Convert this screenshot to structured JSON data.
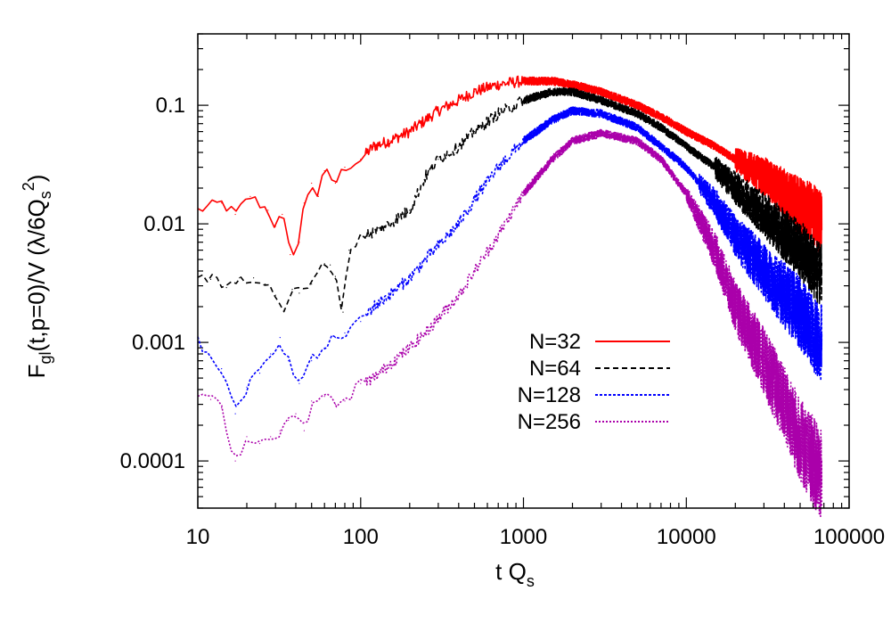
{
  "chart_data": {
    "type": "line",
    "title": "",
    "xlabel": "t Q",
    "xlabel_sub": "s",
    "ylabel_parts": {
      "main": "F",
      "sub": "gl",
      "mid": "(t,p=0)/V (λ/6Q",
      "sub2": "s",
      "sup2": "2",
      "end": ")"
    },
    "x_scale": "log",
    "y_scale": "log",
    "xlim": [
      10,
      100000
    ],
    "ylim": [
      4e-05,
      0.4
    ],
    "x_ticks": [
      {
        "value": 10,
        "label": "10"
      },
      {
        "value": 100,
        "label": "100"
      },
      {
        "value": 1000,
        "label": "1000"
      },
      {
        "value": 10000,
        "label": "10000"
      },
      {
        "value": 100000,
        "label": "100000"
      }
    ],
    "y_ticks": [
      {
        "value": 0.0001,
        "label": "0.0001"
      },
      {
        "value": 0.001,
        "label": "0.001"
      },
      {
        "value": 0.01,
        "label": "0.01"
      },
      {
        "value": 0.1,
        "label": "0.1"
      }
    ],
    "legend_position": "center-right",
    "series": [
      {
        "name": "N=32",
        "color": "#ff0000",
        "dash": "solid",
        "points": [
          [
            10,
            0.013
          ],
          [
            14,
            0.015
          ],
          [
            17,
            0.012
          ],
          [
            21,
            0.017
          ],
          [
            27,
            0.013
          ],
          [
            30,
            0.0095
          ],
          [
            33,
            0.012
          ],
          [
            37,
            0.0055
          ],
          [
            42,
            0.007
          ],
          [
            45,
            0.015
          ],
          [
            50,
            0.022
          ],
          [
            55,
            0.017
          ],
          [
            60,
            0.028
          ],
          [
            70,
            0.022
          ],
          [
            80,
            0.03
          ],
          [
            100,
            0.035
          ],
          [
            120,
            0.045
          ],
          [
            150,
            0.05
          ],
          [
            200,
            0.06
          ],
          [
            250,
            0.075
          ],
          [
            300,
            0.09
          ],
          [
            400,
            0.11
          ],
          [
            500,
            0.13
          ],
          [
            700,
            0.15
          ],
          [
            1000,
            0.16
          ],
          [
            1500,
            0.16
          ],
          [
            2000,
            0.15
          ],
          [
            3000,
            0.13
          ],
          [
            5000,
            0.1
          ],
          [
            7000,
            0.08
          ],
          [
            10000,
            0.06
          ],
          [
            15000,
            0.045
          ],
          [
            20000,
            0.035
          ],
          [
            30000,
            0.025
          ],
          [
            40000,
            0.018
          ],
          [
            50000,
            0.014
          ],
          [
            60000,
            0.012
          ],
          [
            68000,
            0.01
          ]
        ],
        "band": [
          [
            20000,
            1.25
          ],
          [
            68000,
            1.9
          ]
        ]
      },
      {
        "name": "N=64",
        "color": "#000000",
        "dash": "6,4",
        "points": [
          [
            10,
            0.0038
          ],
          [
            12,
            0.0034
          ],
          [
            15,
            0.0029
          ],
          [
            18,
            0.0035
          ],
          [
            22,
            0.0035
          ],
          [
            26,
            0.0031
          ],
          [
            30,
            0.0025
          ],
          [
            34,
            0.0019
          ],
          [
            38,
            0.0028
          ],
          [
            42,
            0.0026
          ],
          [
            50,
            0.0031
          ],
          [
            60,
            0.0046
          ],
          [
            65,
            0.0045
          ],
          [
            70,
            0.0036
          ],
          [
            78,
            0.0018
          ],
          [
            85,
            0.006
          ],
          [
            100,
            0.008
          ],
          [
            120,
            0.0085
          ],
          [
            150,
            0.01
          ],
          [
            200,
            0.013
          ],
          [
            250,
            0.025
          ],
          [
            300,
            0.035
          ],
          [
            400,
            0.045
          ],
          [
            500,
            0.06
          ],
          [
            700,
            0.085
          ],
          [
            1000,
            0.11
          ],
          [
            1500,
            0.13
          ],
          [
            2000,
            0.13
          ],
          [
            3000,
            0.11
          ],
          [
            5000,
            0.085
          ],
          [
            7000,
            0.065
          ],
          [
            10000,
            0.045
          ],
          [
            15000,
            0.03
          ],
          [
            20000,
            0.02
          ],
          [
            30000,
            0.012
          ],
          [
            40000,
            0.008
          ],
          [
            50000,
            0.006
          ],
          [
            60000,
            0.0045
          ],
          [
            68000,
            0.0035
          ]
        ],
        "band": [
          [
            15000,
            1.25
          ],
          [
            68000,
            1.9
          ]
        ]
      },
      {
        "name": "N=128",
        "color": "#0000ff",
        "dash": "3,2",
        "points": [
          [
            10,
            0.001
          ],
          [
            12,
            0.00075
          ],
          [
            14,
            0.0006
          ],
          [
            17,
            0.00025
          ],
          [
            20,
            0.00042
          ],
          [
            24,
            0.00055
          ],
          [
            28,
            0.0008
          ],
          [
            32,
            0.0011
          ],
          [
            36,
            0.0007
          ],
          [
            42,
            0.00045
          ],
          [
            50,
            0.0007
          ],
          [
            60,
            0.0009
          ],
          [
            70,
            0.0011
          ],
          [
            80,
            0.0012
          ],
          [
            100,
            0.0015
          ],
          [
            120,
            0.002
          ],
          [
            150,
            0.0025
          ],
          [
            200,
            0.0035
          ],
          [
            250,
            0.005
          ],
          [
            300,
            0.0065
          ],
          [
            400,
            0.01
          ],
          [
            500,
            0.016
          ],
          [
            700,
            0.03
          ],
          [
            1000,
            0.05
          ],
          [
            1500,
            0.075
          ],
          [
            2000,
            0.09
          ],
          [
            3000,
            0.085
          ],
          [
            5000,
            0.065
          ],
          [
            7000,
            0.045
          ],
          [
            10000,
            0.03
          ],
          [
            15000,
            0.015
          ],
          [
            20000,
            0.008
          ],
          [
            30000,
            0.004
          ],
          [
            40000,
            0.0025
          ],
          [
            50000,
            0.0018
          ],
          [
            60000,
            0.0012
          ],
          [
            68000,
            0.001
          ]
        ],
        "band": [
          [
            12000,
            1.2
          ],
          [
            68000,
            2.2
          ]
        ]
      },
      {
        "name": "N=256",
        "color": "#aa00aa",
        "dash": "2,2",
        "points": [
          [
            10,
            0.00037
          ],
          [
            12,
            0.00033
          ],
          [
            14,
            0.00028
          ],
          [
            17,
            0.0001
          ],
          [
            20,
            0.00016
          ],
          [
            24,
            0.00014
          ],
          [
            28,
            0.00016
          ],
          [
            32,
            0.00018
          ],
          [
            36,
            0.00022
          ],
          [
            40,
            0.00025
          ],
          [
            45,
            0.00018
          ],
          [
            50,
            0.00032
          ],
          [
            60,
            0.00035
          ],
          [
            70,
            0.0003
          ],
          [
            80,
            0.00032
          ],
          [
            100,
            0.00045
          ],
          [
            120,
            0.0005
          ],
          [
            150,
            0.00065
          ],
          [
            200,
            0.0009
          ],
          [
            250,
            0.0012
          ],
          [
            300,
            0.0016
          ],
          [
            400,
            0.0025
          ],
          [
            500,
            0.004
          ],
          [
            700,
            0.008
          ],
          [
            1000,
            0.018
          ],
          [
            1500,
            0.035
          ],
          [
            2000,
            0.05
          ],
          [
            3000,
            0.058
          ],
          [
            5000,
            0.05
          ],
          [
            7000,
            0.035
          ],
          [
            10000,
            0.018
          ],
          [
            15000,
            0.006
          ],
          [
            20000,
            0.002
          ],
          [
            30000,
            0.0007
          ],
          [
            40000,
            0.0003
          ],
          [
            50000,
            0.00015
          ],
          [
            60000,
            0.0001
          ],
          [
            68000,
            7e-05
          ]
        ],
        "band": [
          [
            10000,
            1.15
          ],
          [
            68000,
            2.5
          ]
        ]
      }
    ]
  }
}
